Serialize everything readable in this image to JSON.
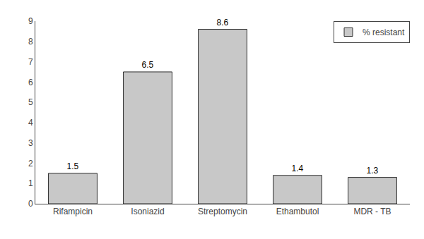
{
  "chart_data": {
    "type": "bar",
    "categories": [
      "Rifampicin",
      "Isoniazid",
      "Streptomycin",
      "Ethambutol",
      "MDR - TB"
    ],
    "series": [
      {
        "name": "% resistant",
        "color": "#c8c8c8",
        "values": [
          1.5,
          6.5,
          8.6,
          1.4,
          1.3
        ]
      }
    ],
    "ylim": [
      0,
      9
    ],
    "yticks": [
      0,
      1,
      2,
      3,
      4,
      5,
      6,
      7,
      8,
      9
    ],
    "grid": false,
    "legend": "upper right",
    "data_labels": true
  }
}
